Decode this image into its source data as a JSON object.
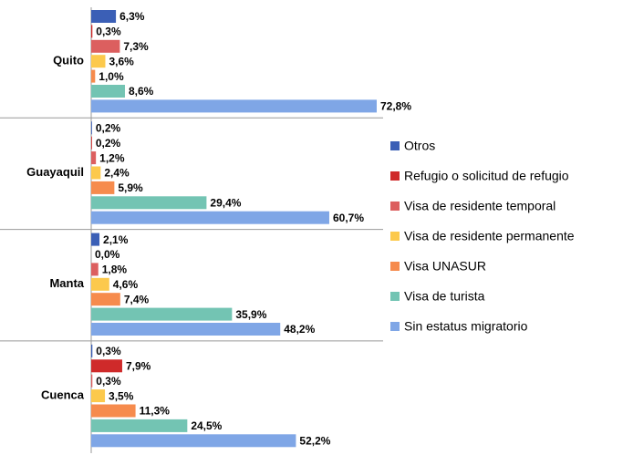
{
  "chart_data": {
    "type": "bar",
    "orientation": "horizontal",
    "categories": [
      "Quito",
      "Guayaquil",
      "Manta",
      "Cuenca"
    ],
    "series": [
      {
        "name": "Otros",
        "color": "#3b5fb6",
        "values": [
          6.3,
          0.2,
          2.1,
          0.3
        ],
        "value_labels": [
          "6,3%",
          "0,2%",
          "2,1%",
          "0,3%"
        ]
      },
      {
        "name": "Refugio o solicitud de refugio",
        "color": "#cf2a2a",
        "values": [
          0.3,
          0.2,
          0.0,
          7.9
        ],
        "value_labels": [
          "0,3%",
          "0,2%",
          "0,0%",
          "7,9%"
        ]
      },
      {
        "name": "Visa de residente temporal",
        "color": "#dc5f5f",
        "values": [
          7.3,
          1.2,
          1.8,
          0.3
        ],
        "value_labels": [
          "7,3%",
          "1,2%",
          "1,8%",
          "0,3%"
        ]
      },
      {
        "name": "Visa de residente permanente",
        "color": "#fcc94c",
        "values": [
          3.6,
          2.4,
          4.6,
          3.5
        ],
        "value_labels": [
          "3,6%",
          "2,4%",
          "4,6%",
          "3,5%"
        ]
      },
      {
        "name": "Visa UNASUR",
        "color": "#f68b4d",
        "values": [
          1.0,
          5.9,
          7.4,
          11.3
        ],
        "value_labels": [
          "1,0%",
          "5,9%",
          "7,4%",
          "11,3%"
        ]
      },
      {
        "name": "Visa de turista",
        "color": "#73c4b3",
        "values": [
          8.6,
          29.4,
          35.9,
          24.5
        ],
        "value_labels": [
          "8,6%",
          "29,4%",
          "35,9%",
          "24,5%"
        ]
      },
      {
        "name": "Sin estatus migratorio",
        "color": "#7fa6e6",
        "values": [
          72.8,
          60.7,
          48.2,
          52.2
        ],
        "value_labels": [
          "72,8%",
          "60,7%",
          "48,2%",
          "52,2%"
        ]
      }
    ]
  }
}
